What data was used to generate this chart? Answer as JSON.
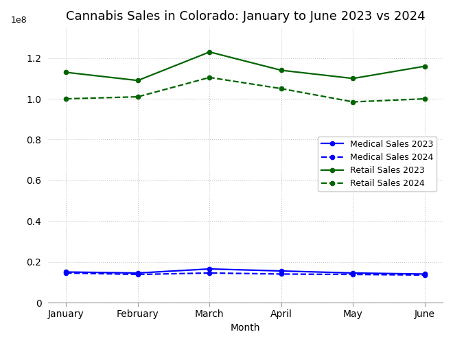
{
  "title": "Cannabis Sales in Colorado: January to June 2023 vs 2024",
  "xlabel": "Month",
  "months": [
    "January",
    "February",
    "March",
    "April",
    "May",
    "June"
  ],
  "medical_2023": [
    15000000,
    14500000,
    16500000,
    15500000,
    14500000,
    14000000
  ],
  "medical_2024": [
    14500000,
    13800000,
    14500000,
    14000000,
    13800000,
    13500000
  ],
  "retail_2023": [
    113000000,
    109000000,
    123000000,
    114000000,
    110000000,
    116000000
  ],
  "retail_2024": [
    100000000,
    101000000,
    110500000,
    105000000,
    98500000,
    100000000
  ],
  "color_medical": "#0000ff",
  "color_retail": "#006400",
  "legend_labels": [
    "Medical Sales 2023",
    "Medical Sales 2024",
    "Retail Sales 2023",
    "Retail Sales 2024"
  ],
  "background_color": "#ffffff",
  "grid_color": "#c8c8c8",
  "title_fontsize": 13,
  "label_fontsize": 10,
  "tick_fontsize": 10,
  "legend_fontsize": 9,
  "ylim_min": 0,
  "ylim_max": 135000000,
  "yticks": [
    0,
    20000000,
    40000000,
    60000000,
    80000000,
    100000000,
    120000000
  ]
}
